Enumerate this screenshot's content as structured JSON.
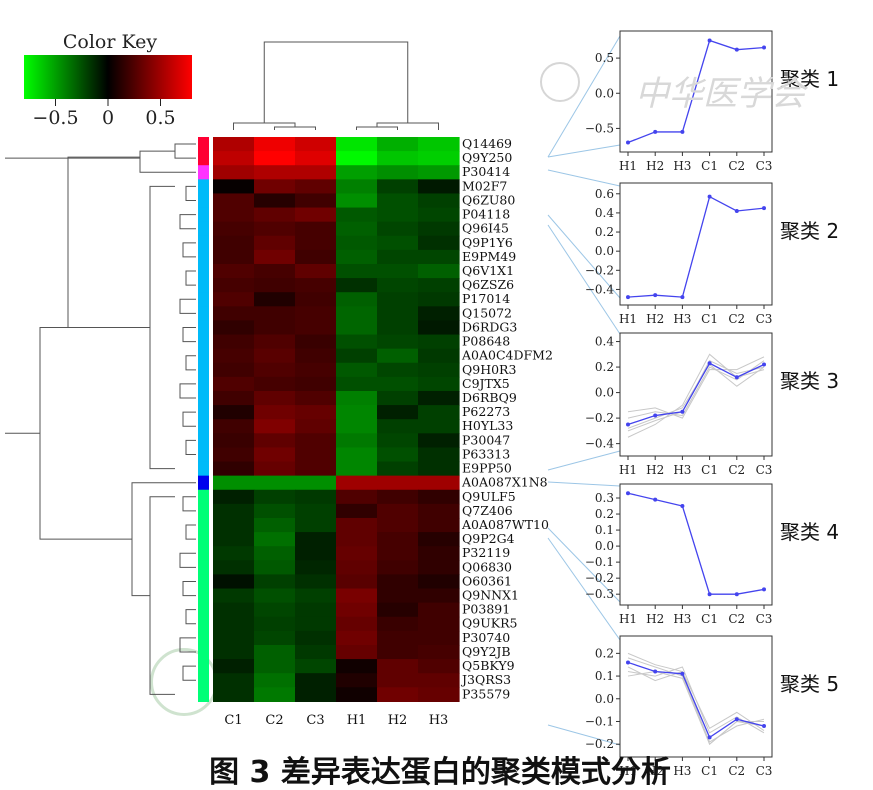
{
  "chart_data": [
    {
      "type": "heatmap",
      "title": "",
      "color_key": {
        "title": "Color Key",
        "ticks": [
          "−0.5",
          "0",
          "0.5"
        ],
        "range": [
          -0.8,
          0.8
        ],
        "colors": {
          "low": "#00ff00",
          "mid": "#000000",
          "high": "#ff0000"
        }
      },
      "columns": [
        "C1",
        "C2",
        "C3",
        "H1",
        "H2",
        "H3"
      ],
      "rows": [
        {
          "id": "Q14469",
          "cluster": 1,
          "values": [
            0.55,
            0.75,
            0.65,
            -0.72,
            -0.55,
            -0.62
          ]
        },
        {
          "id": "Q9Y250",
          "cluster": 1,
          "values": [
            0.6,
            0.8,
            0.7,
            -0.78,
            -0.62,
            -0.65
          ]
        },
        {
          "id": "P30414",
          "cluster": 2,
          "values": [
            0.5,
            0.55,
            0.55,
            -0.5,
            -0.45,
            -0.48
          ]
        },
        {
          "id": "M02F7",
          "cluster": 3,
          "values": [
            0.02,
            0.35,
            0.3,
            -0.4,
            -0.2,
            -0.08
          ]
        },
        {
          "id": "Q6ZU80",
          "cluster": 3,
          "values": [
            0.25,
            0.12,
            0.2,
            -0.45,
            -0.25,
            -0.2
          ]
        },
        {
          "id": "P04118",
          "cluster": 3,
          "values": [
            0.25,
            0.3,
            0.35,
            -0.28,
            -0.25,
            -0.22
          ]
        },
        {
          "id": "Q96I45",
          "cluster": 3,
          "values": [
            0.22,
            0.25,
            0.22,
            -0.3,
            -0.22,
            -0.18
          ]
        },
        {
          "id": "Q9P1Y6",
          "cluster": 3,
          "values": [
            0.2,
            0.3,
            0.22,
            -0.28,
            -0.25,
            -0.15
          ]
        },
        {
          "id": "E9PM49",
          "cluster": 3,
          "values": [
            0.2,
            0.35,
            0.2,
            -0.3,
            -0.22,
            -0.22
          ]
        },
        {
          "id": "Q6V1X1",
          "cluster": 3,
          "values": [
            0.25,
            0.22,
            0.3,
            -0.25,
            -0.25,
            -0.3
          ]
        },
        {
          "id": "Q6ZSZ6",
          "cluster": 3,
          "values": [
            0.22,
            0.2,
            0.22,
            -0.15,
            -0.22,
            -0.2
          ]
        },
        {
          "id": "P17014",
          "cluster": 3,
          "values": [
            0.25,
            0.1,
            0.2,
            -0.3,
            -0.2,
            -0.18
          ]
        },
        {
          "id": "Q15072",
          "cluster": 3,
          "values": [
            0.2,
            0.2,
            0.22,
            -0.32,
            -0.2,
            -0.1
          ]
        },
        {
          "id": "D6RDG3",
          "cluster": 3,
          "values": [
            0.15,
            0.2,
            0.22,
            -0.32,
            -0.2,
            -0.08
          ]
        },
        {
          "id": "P08648",
          "cluster": 3,
          "values": [
            0.2,
            0.25,
            0.18,
            -0.25,
            -0.22,
            -0.2
          ]
        },
        {
          "id": "A0A0C4DFM2",
          "cluster": 3,
          "values": [
            0.22,
            0.28,
            0.2,
            -0.2,
            -0.3,
            -0.18
          ]
        },
        {
          "id": "Q9H0R3",
          "cluster": 3,
          "values": [
            0.2,
            0.25,
            0.22,
            -0.28,
            -0.22,
            -0.2
          ]
        },
        {
          "id": "C9JTX5",
          "cluster": 3,
          "values": [
            0.25,
            0.22,
            0.2,
            -0.25,
            -0.25,
            -0.22
          ]
        },
        {
          "id": "D6RBQ9",
          "cluster": 3,
          "values": [
            0.2,
            0.3,
            0.25,
            -0.4,
            -0.2,
            -0.1
          ]
        },
        {
          "id": "P62273",
          "cluster": 3,
          "values": [
            0.1,
            0.35,
            0.32,
            -0.42,
            -0.1,
            -0.2
          ]
        },
        {
          "id": "H0YL33",
          "cluster": 3,
          "values": [
            0.2,
            0.4,
            0.3,
            -0.42,
            -0.2,
            -0.2
          ]
        },
        {
          "id": "P30047",
          "cluster": 3,
          "values": [
            0.18,
            0.3,
            0.25,
            -0.38,
            -0.22,
            -0.1
          ]
        },
        {
          "id": "P63313",
          "cluster": 3,
          "values": [
            0.2,
            0.35,
            0.25,
            -0.42,
            -0.25,
            -0.15
          ]
        },
        {
          "id": "E9PP50",
          "cluster": 3,
          "values": [
            0.15,
            0.32,
            0.25,
            -0.42,
            -0.2,
            -0.15
          ]
        },
        {
          "id": "A0A087X1N8",
          "cluster": 4,
          "values": [
            -0.45,
            -0.45,
            -0.45,
            0.5,
            0.5,
            0.5
          ]
        },
        {
          "id": "Q9ULF5",
          "cluster": 5,
          "values": [
            -0.1,
            -0.2,
            -0.18,
            0.25,
            0.2,
            0.15
          ]
        },
        {
          "id": "Q7Z406",
          "cluster": 5,
          "values": [
            -0.15,
            -0.25,
            -0.2,
            0.15,
            0.25,
            0.2
          ]
        },
        {
          "id": "A0A087WT10",
          "cluster": 5,
          "values": [
            -0.15,
            -0.3,
            -0.2,
            0.3,
            0.25,
            0.2
          ]
        },
        {
          "id": "Q9P2G4",
          "cluster": 5,
          "values": [
            -0.15,
            -0.35,
            -0.1,
            0.3,
            0.22,
            0.12
          ]
        },
        {
          "id": "P32119",
          "cluster": 5,
          "values": [
            -0.18,
            -0.3,
            -0.1,
            0.32,
            0.22,
            0.15
          ]
        },
        {
          "id": "Q06830",
          "cluster": 5,
          "values": [
            -0.15,
            -0.28,
            -0.12,
            0.3,
            0.2,
            0.15
          ]
        },
        {
          "id": "O60361",
          "cluster": 5,
          "values": [
            -0.05,
            -0.2,
            -0.15,
            0.28,
            0.15,
            0.1
          ]
        },
        {
          "id": "Q9NNX1",
          "cluster": 5,
          "values": [
            -0.18,
            -0.25,
            -0.2,
            0.38,
            0.15,
            0.15
          ]
        },
        {
          "id": "P03891",
          "cluster": 5,
          "values": [
            -0.15,
            -0.22,
            -0.18,
            0.35,
            0.12,
            0.2
          ]
        },
        {
          "id": "Q9UKR5",
          "cluster": 5,
          "values": [
            -0.15,
            -0.2,
            -0.18,
            0.32,
            0.18,
            0.2
          ]
        },
        {
          "id": "P30740",
          "cluster": 5,
          "values": [
            -0.15,
            -0.22,
            -0.15,
            0.35,
            0.2,
            0.2
          ]
        },
        {
          "id": "Q9Y2JB",
          "cluster": 5,
          "values": [
            -0.15,
            -0.3,
            -0.18,
            0.32,
            0.2,
            0.22
          ]
        },
        {
          "id": "Q5BKY9",
          "cluster": 5,
          "values": [
            -0.1,
            -0.3,
            -0.22,
            0.05,
            0.3,
            0.25
          ]
        },
        {
          "id": "J3QRS3",
          "cluster": 5,
          "values": [
            -0.15,
            -0.35,
            -0.1,
            0.1,
            0.3,
            0.3
          ]
        },
        {
          "id": "P35579",
          "cluster": 5,
          "values": [
            -0.15,
            -0.38,
            -0.1,
            0.05,
            0.35,
            0.32
          ]
        }
      ],
      "cluster_colors": {
        "1": "#ff0033",
        "2": "#ff33ff",
        "3": "#00bbf9",
        "4": "#0000ee",
        "5": "#00ff77"
      }
    },
    {
      "type": "line",
      "panels": [
        {
          "label": "聚类 1",
          "x": [
            "H1",
            "H2",
            "H3",
            "C1",
            "C2",
            "C3"
          ],
          "yticks": [
            "0.5",
            "0.0",
            "−0.5"
          ],
          "ylim": [
            -0.75,
            0.8
          ],
          "mean": [
            -0.7,
            -0.55,
            -0.55,
            0.75,
            0.62,
            0.65
          ],
          "members": []
        },
        {
          "label": "聚类 2",
          "x": [
            "H1",
            "H2",
            "H3",
            "C1",
            "C2",
            "C3"
          ],
          "yticks": [
            "0.6",
            "0.4",
            "0.2",
            "0.0",
            "−0.2",
            "−0.4"
          ],
          "ylim": [
            -0.5,
            0.65
          ],
          "mean": [
            -0.48,
            -0.46,
            -0.48,
            0.57,
            0.42,
            0.45
          ],
          "members": []
        },
        {
          "label": "聚类 3",
          "x": [
            "H1",
            "H2",
            "H3",
            "C1",
            "C2",
            "C3"
          ],
          "yticks": [
            "0.4",
            "0.2",
            "0.0",
            "−0.2",
            "−0.4"
          ],
          "ylim": [
            -0.45,
            0.42
          ],
          "mean": [
            -0.25,
            -0.18,
            -0.15,
            0.23,
            0.12,
            0.22
          ],
          "members": [
            [
              -0.3,
              -0.22,
              -0.15,
              0.25,
              0.15,
              0.2
            ],
            [
              -0.2,
              -0.15,
              -0.18,
              0.2,
              0.1,
              0.25
            ],
            [
              -0.35,
              -0.25,
              -0.1,
              0.3,
              0.12,
              0.18
            ],
            [
              -0.15,
              -0.12,
              -0.2,
              0.18,
              0.18,
              0.28
            ],
            [
              -0.28,
              -0.2,
              -0.12,
              0.22,
              0.05,
              0.2
            ]
          ]
        },
        {
          "label": "聚类 4",
          "x": [
            "H1",
            "H2",
            "H3",
            "C1",
            "C2",
            "C3"
          ],
          "yticks": [
            "0.3",
            "0.2",
            "0.1",
            "0.0",
            "−0.1",
            "−0.2",
            "−0.3"
          ],
          "ylim": [
            -0.33,
            0.35
          ],
          "mean": [
            0.33,
            0.29,
            0.25,
            -0.3,
            -0.3,
            -0.27
          ],
          "members": []
        },
        {
          "label": "聚类 5",
          "x": [
            "H1",
            "H2",
            "H3",
            "C1",
            "C2",
            "C3"
          ],
          "yticks": [
            "0.2",
            "0.1",
            "0.0",
            "−0.1",
            "−0.2"
          ],
          "ylim": [
            -0.23,
            0.25
          ],
          "mean": [
            0.16,
            0.12,
            0.11,
            -0.17,
            -0.09,
            -0.12
          ],
          "members": [
            [
              0.2,
              0.15,
              0.12,
              -0.2,
              -0.1,
              -0.1
            ],
            [
              0.12,
              0.1,
              0.14,
              -0.15,
              -0.08,
              -0.15
            ],
            [
              0.18,
              0.14,
              0.1,
              -0.19,
              -0.12,
              -0.09
            ],
            [
              0.14,
              0.08,
              0.12,
              -0.13,
              -0.06,
              -0.14
            ],
            [
              0.1,
              0.12,
              0.09,
              -0.2,
              -0.1,
              -0.12
            ]
          ]
        }
      ],
      "colors": {
        "mean": "#4444ee",
        "members": "#c8c8c8"
      }
    }
  ],
  "watermark": "中华医学会",
  "caption": "图 3  差异表达蛋白的聚类模式分析"
}
